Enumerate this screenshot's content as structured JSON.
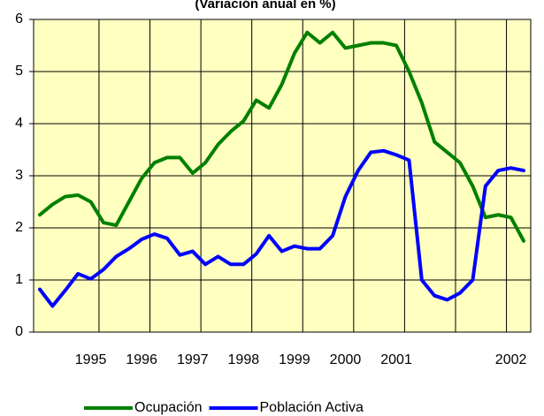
{
  "chart_data": {
    "type": "line",
    "title": "(Variación anual en %)",
    "categories": [
      null,
      null,
      null,
      null,
      "1995",
      null,
      null,
      null,
      "1996",
      null,
      null,
      null,
      "1997",
      null,
      null,
      null,
      "1998",
      null,
      null,
      null,
      "1999",
      null,
      null,
      null,
      "2000",
      null,
      null,
      null,
      "2001",
      null,
      null,
      null,
      null,
      null,
      null,
      null,
      null,
      "2002",
      null
    ],
    "series": [
      {
        "name": "Ocupación",
        "color": "#008000",
        "values": [
          2.25,
          2.45,
          2.6,
          2.63,
          2.5,
          2.1,
          2.05,
          2.5,
          2.95,
          3.25,
          3.35,
          3.35,
          3.05,
          3.25,
          3.6,
          3.85,
          4.05,
          4.45,
          4.3,
          4.75,
          5.35,
          5.75,
          5.55,
          5.75,
          5.45,
          5.5,
          5.55,
          5.55,
          5.5,
          5.0,
          4.4,
          3.65,
          3.45,
          3.25,
          2.8,
          2.2,
          2.25,
          2.2,
          1.75
        ]
      },
      {
        "name": "Población Activa",
        "color": "#0000ff",
        "values": [
          0.82,
          0.5,
          0.8,
          1.12,
          1.02,
          1.2,
          1.45,
          1.6,
          1.78,
          1.88,
          1.8,
          1.48,
          1.55,
          1.3,
          1.45,
          1.3,
          1.3,
          1.5,
          1.85,
          1.55,
          1.65,
          1.6,
          1.6,
          1.85,
          2.6,
          3.1,
          3.45,
          3.48,
          3.4,
          3.3,
          1.0,
          0.7,
          0.62,
          0.75,
          1.0,
          2.8,
          3.1,
          3.15,
          3.1
        ]
      }
    ],
    "ylim": [
      0,
      6
    ],
    "yticks": [
      0,
      1,
      2,
      3,
      4,
      5,
      6
    ],
    "grid": true,
    "legend": "bottom"
  }
}
